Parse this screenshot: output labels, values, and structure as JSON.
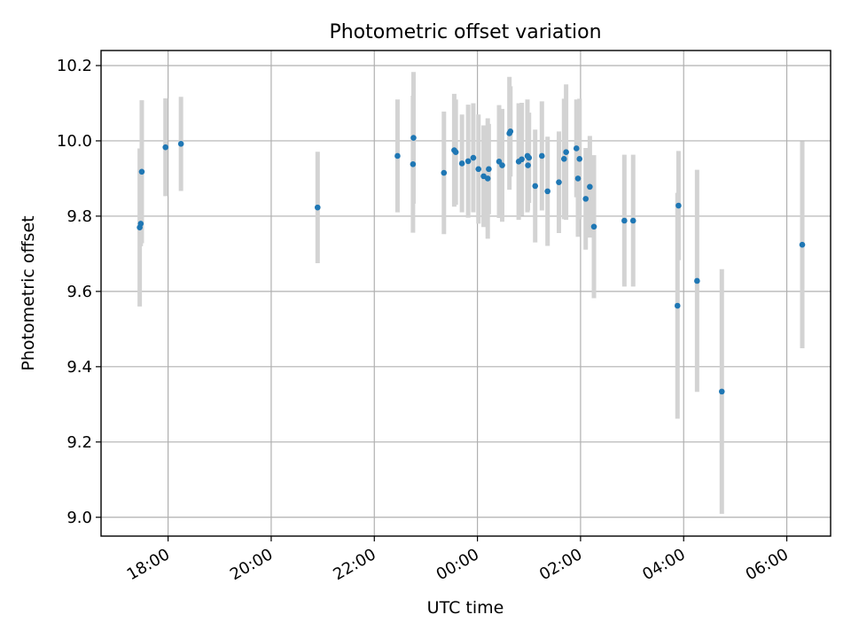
{
  "chart_data": {
    "type": "scatter",
    "title": "Photometric offset variation",
    "xlabel": "UTC time",
    "ylabel": "Photometric offset",
    "x_unit": "hours relative to 00:00 UTC",
    "xlim": [
      -7.3,
      6.85
    ],
    "ylim": [
      8.95,
      10.24
    ],
    "grid": true,
    "x_ticks": [
      {
        "value": -6,
        "label": "18:00"
      },
      {
        "value": -4,
        "label": "20:00"
      },
      {
        "value": -2,
        "label": "22:00"
      },
      {
        "value": 0,
        "label": "00:00"
      },
      {
        "value": 2,
        "label": "02:00"
      },
      {
        "value": 4,
        "label": "04:00"
      },
      {
        "value": 6,
        "label": "06:00"
      }
    ],
    "y_ticks": [
      {
        "value": 9.0,
        "label": "9.0"
      },
      {
        "value": 9.2,
        "label": "9.2"
      },
      {
        "value": 9.4,
        "label": "9.4"
      },
      {
        "value": 9.6,
        "label": "9.6"
      },
      {
        "value": 9.8,
        "label": "9.8"
      },
      {
        "value": 10.0,
        "label": "10.0"
      },
      {
        "value": 10.2,
        "label": "10.2"
      }
    ],
    "colors": {
      "marker": "#1f77b4",
      "errorbar": "#d3d3d3",
      "grid": "#b0b0b0"
    },
    "points": [
      {
        "x": -6.55,
        "y": 9.77,
        "err": 0.21
      },
      {
        "x": -6.53,
        "y": 9.78,
        "err": 0.06
      },
      {
        "x": -6.51,
        "y": 9.918,
        "err": 0.19
      },
      {
        "x": -6.05,
        "y": 9.983,
        "err": 0.13
      },
      {
        "x": -5.75,
        "y": 9.992,
        "err": 0.125
      },
      {
        "x": -3.1,
        "y": 9.823,
        "err": 0.148
      },
      {
        "x": -1.55,
        "y": 9.96,
        "err": 0.15
      },
      {
        "x": -1.25,
        "y": 9.938,
        "err": 0.182
      },
      {
        "x": -1.24,
        "y": 10.008,
        "err": 0.175
      },
      {
        "x": -0.65,
        "y": 9.915,
        "err": 0.163
      },
      {
        "x": -0.45,
        "y": 9.975,
        "err": 0.15
      },
      {
        "x": -0.42,
        "y": 9.97,
        "err": 0.14
      },
      {
        "x": -0.3,
        "y": 9.94,
        "err": 0.13
      },
      {
        "x": -0.18,
        "y": 9.946,
        "err": 0.15
      },
      {
        "x": -0.08,
        "y": 9.955,
        "err": 0.145
      },
      {
        "x": 0.02,
        "y": 9.925,
        "err": 0.145
      },
      {
        "x": 0.12,
        "y": 9.906,
        "err": 0.135
      },
      {
        "x": 0.2,
        "y": 9.9,
        "err": 0.16
      },
      {
        "x": 0.22,
        "y": 9.925,
        "err": 0.12
      },
      {
        "x": 0.42,
        "y": 9.945,
        "err": 0.15
      },
      {
        "x": 0.48,
        "y": 9.935,
        "err": 0.15
      },
      {
        "x": 0.62,
        "y": 10.02,
        "err": 0.15
      },
      {
        "x": 0.64,
        "y": 10.025,
        "err": 0.12
      },
      {
        "x": 0.8,
        "y": 9.945,
        "err": 0.155
      },
      {
        "x": 0.86,
        "y": 9.951,
        "err": 0.15
      },
      {
        "x": 0.98,
        "y": 9.935,
        "err": 0.12
      },
      {
        "x": 0.97,
        "y": 9.96,
        "err": 0.15
      },
      {
        "x": 1.0,
        "y": 9.955,
        "err": 0.12
      },
      {
        "x": 1.12,
        "y": 9.88,
        "err": 0.15
      },
      {
        "x": 1.25,
        "y": 9.96,
        "err": 0.145
      },
      {
        "x": 1.36,
        "y": 9.866,
        "err": 0.145
      },
      {
        "x": 1.58,
        "y": 9.89,
        "err": 0.135
      },
      {
        "x": 1.68,
        "y": 9.952,
        "err": 0.16
      },
      {
        "x": 1.72,
        "y": 9.97,
        "err": 0.18
      },
      {
        "x": 1.92,
        "y": 9.98,
        "err": 0.13
      },
      {
        "x": 1.95,
        "y": 9.9,
        "err": 0.155
      },
      {
        "x": 1.98,
        "y": 9.952,
        "err": 0.16
      },
      {
        "x": 2.1,
        "y": 9.846,
        "err": 0.135
      },
      {
        "x": 2.18,
        "y": 9.878,
        "err": 0.135
      },
      {
        "x": 2.26,
        "y": 9.772,
        "err": 0.19
      },
      {
        "x": 2.85,
        "y": 9.788,
        "err": 0.175
      },
      {
        "x": 3.02,
        "y": 9.788,
        "err": 0.175
      },
      {
        "x": 3.88,
        "y": 9.562,
        "err": 0.3
      },
      {
        "x": 3.9,
        "y": 9.828,
        "err": 0.145
      },
      {
        "x": 4.26,
        "y": 9.628,
        "err": 0.295
      },
      {
        "x": 4.74,
        "y": 9.334,
        "err": 0.325
      },
      {
        "x": 6.3,
        "y": 9.724,
        "err": 0.275
      }
    ]
  }
}
